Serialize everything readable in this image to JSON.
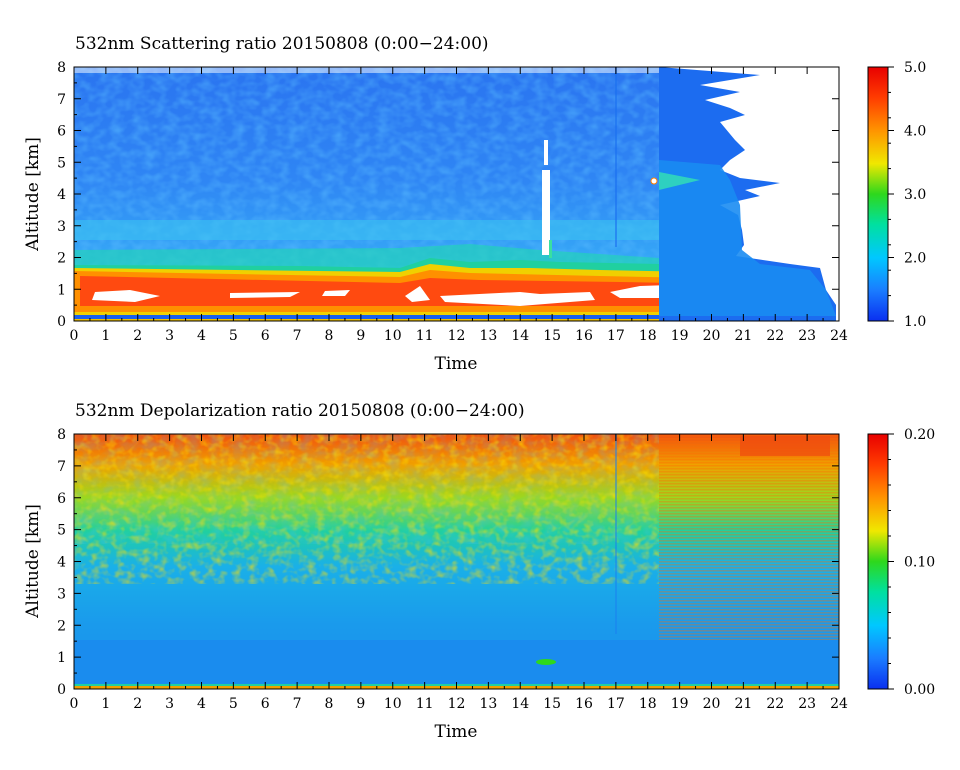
{
  "chart_data": [
    {
      "type": "heatmap",
      "title": "532nm Scattering ratio  20150808 (0:00−24:00)",
      "xlabel": "Time",
      "ylabel": "Altitude [km]",
      "xlim": [
        0,
        24
      ],
      "ylim": [
        0,
        8
      ],
      "x_ticks": [
        "0",
        "1",
        "2",
        "3",
        "4",
        "5",
        "6",
        "7",
        "8",
        "9",
        "10",
        "11",
        "12",
        "13",
        "14",
        "15",
        "16",
        "17",
        "18",
        "19",
        "20",
        "21",
        "22",
        "23",
        "24"
      ],
      "y_ticks": [
        "0",
        "1",
        "2",
        "3",
        "4",
        "5",
        "6",
        "7",
        "8"
      ],
      "colorbar": {
        "range": [
          1.0,
          5.0
        ],
        "ticks": [
          "1.0",
          "2.0",
          "3.0",
          "4.0",
          "5.0"
        ],
        "colors": [
          "#0a2ff0",
          "#1a7cff",
          "#00c8ff",
          "#00e0a0",
          "#2ed81c",
          "#f0e800",
          "#ff9400",
          "#ff3c00",
          "#e80000"
        ]
      },
      "features": {
        "boundary_layer_top_km": 1.8,
        "saturated_layer_km": [
          0.3,
          1.1
        ],
        "aerosol_layer_km": [
          2.6,
          3.0
        ],
        "cloud_time_h": 14.8,
        "cloud_altitude_km": [
          2.0,
          6.0
        ],
        "profile_rain_start_h": 18.3,
        "data_end_h": 24
      }
    },
    {
      "type": "heatmap",
      "title": "532nm Depolarization ratio  20150808 (0:00−24:00)",
      "xlabel": "Time",
      "ylabel": "Altitude [km]",
      "xlim": [
        0,
        24
      ],
      "ylim": [
        0,
        8
      ],
      "x_ticks": [
        "0",
        "1",
        "2",
        "3",
        "4",
        "5",
        "6",
        "7",
        "8",
        "9",
        "10",
        "11",
        "12",
        "13",
        "14",
        "15",
        "16",
        "17",
        "18",
        "19",
        "20",
        "21",
        "22",
        "23",
        "24"
      ],
      "y_ticks": [
        "0",
        "1",
        "2",
        "3",
        "4",
        "5",
        "6",
        "7",
        "8"
      ],
      "colorbar": {
        "range": [
          0.0,
          0.2
        ],
        "ticks": [
          "0.00",
          "0.10",
          "0.20"
        ],
        "colors": [
          "#0a2ff0",
          "#1a7cff",
          "#00c8ff",
          "#00e0a0",
          "#2ed81c",
          "#f0e800",
          "#ff9400",
          "#ff3c00",
          "#e80000"
        ]
      },
      "features": {
        "high_depol_altitude_km": [
          6.0,
          8.0
        ],
        "low_depol_altitude_km": [
          0.0,
          2.0
        ],
        "profile_start_h": 18.3
      }
    }
  ]
}
